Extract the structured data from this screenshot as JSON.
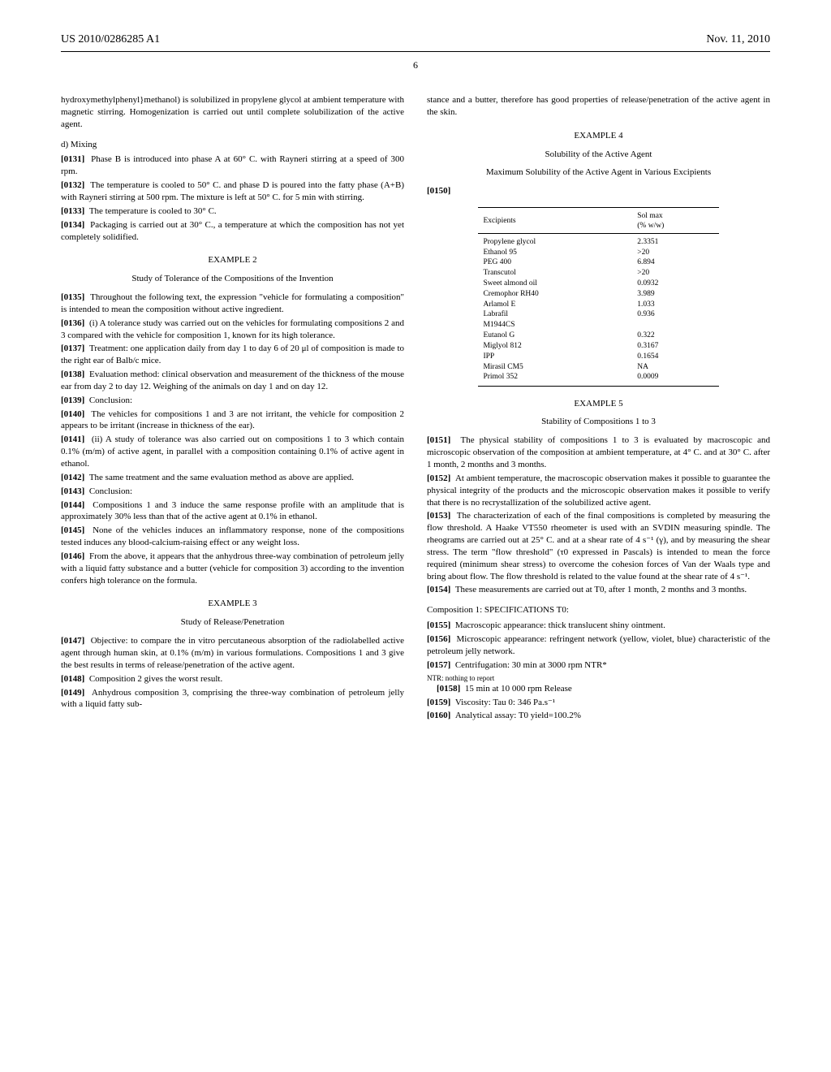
{
  "header": {
    "left": "US 2010/0286285 A1",
    "right": "Nov. 11, 2010"
  },
  "pageNumber": "6",
  "col1": {
    "p_intro": "hydroxymethylphenyl}methanol) is solubilized in propylene glycol at ambient temperature with magnetic stirring. Homogenization is carried out until complete solubilization of the active agent.",
    "d_mixing": "d) Mixing",
    "p0131_label": "[0131]",
    "p0131": "Phase B is introduced into phase A at 60° C. with Rayneri stirring at a speed of 300 rpm.",
    "p0132_label": "[0132]",
    "p0132": "The temperature is cooled to 50° C. and phase D is poured into the fatty phase (A+B) with Rayneri stirring at 500 rpm. The mixture is left at 50° C. for 5 min with stirring.",
    "p0133_label": "[0133]",
    "p0133": "The temperature is cooled to 30° C.",
    "p0134_label": "[0134]",
    "p0134": "Packaging is carried out at 30° C., a temperature at which the composition has not yet completely solidified.",
    "ex2_title": "EXAMPLE 2",
    "ex2_sub": "Study of Tolerance of the Compositions of the Invention",
    "p0135_label": "[0135]",
    "p0135": "Throughout the following text, the expression \"vehicle for formulating a composition\" is intended to mean the composition without active ingredient.",
    "p0136_label": "[0136]",
    "p0136": "(i) A tolerance study was carried out on the vehicles for formulating compositions 2 and 3 compared with the vehicle for composition 1, known for its high tolerance.",
    "p0137_label": "[0137]",
    "p0137": "Treatment: one application daily from day 1 to day 6 of 20 μl of composition is made to the right ear of Balb/c mice.",
    "p0138_label": "[0138]",
    "p0138": "Evaluation method: clinical observation and measurement of the thickness of the mouse ear from day 2 to day 12. Weighing of the animals on day 1 and on day 12.",
    "p0139_label": "[0139]",
    "p0139": "Conclusion:",
    "p0140_label": "[0140]",
    "p0140": "The vehicles for compositions 1 and 3 are not irritant, the vehicle for composition 2 appears to be irritant (increase in thickness of the ear).",
    "p0141_label": "[0141]",
    "p0141": "(ii) A study of tolerance was also carried out on compositions 1 to 3 which contain 0.1% (m/m) of active agent, in parallel with a composition containing 0.1% of active agent in ethanol.",
    "p0142_label": "[0142]",
    "p0142": "The same treatment and the same evaluation method as above are applied.",
    "p0143_label": "[0143]",
    "p0143": "Conclusion:",
    "p0144_label": "[0144]",
    "p0144": "Compositions 1 and 3 induce the same response profile with an amplitude that is approximately 30% less than that of the active agent at 0.1% in ethanol.",
    "p0145_label": "[0145]",
    "p0145": "None of the vehicles induces an inflammatory response, none of the compositions tested induces any blood-calcium-raising effect or any weight loss.",
    "p0146_label": "[0146]",
    "p0146": "From the above, it appears that the anhydrous three-way combination of petroleum jelly with a liquid fatty substance and a butter (vehicle for composition 3) according to the invention confers high tolerance on the formula.",
    "ex3_title": "EXAMPLE 3",
    "ex3_sub": "Study of Release/Penetration",
    "p0147_label": "[0147]",
    "p0147": "Objective: to compare the in vitro percutaneous absorption of the radiolabelled active agent through human skin, at 0.1% (m/m) in various formulations. Compositions 1 and 3 give the best results in terms of release/penetration of the active agent.",
    "p0148_label": "[0148]",
    "p0148": "Composition 2 gives the worst result.",
    "p0149_label": "[0149]",
    "p0149": "Anhydrous composition 3, comprising the three-way combination of petroleum jelly with a liquid fatty sub-"
  },
  "col2": {
    "p_top": "stance and a butter, therefore has good properties of release/penetration of the active agent in the skin.",
    "ex4_title": "EXAMPLE 4",
    "ex4_sub1": "Solubility of the Active Agent",
    "ex4_sub2": "Maximum Solubility of the Active Agent in Various Excipients",
    "p0150_label": "[0150]",
    "table": {
      "h1": "Excipients",
      "h2": "Sol max",
      "h2b": "(% w/w)",
      "rows": [
        {
          "e": "Propylene glycol",
          "v": "2.3351"
        },
        {
          "e": "Ethanol 95",
          "v": ">20"
        },
        {
          "e": "PEG 400",
          "v": "6.894"
        },
        {
          "e": "Transcutol",
          "v": ">20"
        },
        {
          "e": "Sweet almond oil",
          "v": "0.0932"
        },
        {
          "e": "Cremophor RH40",
          "v": "3.989"
        },
        {
          "e": "Arlamol E",
          "v": "1.033"
        },
        {
          "e": "Labrafil",
          "v": "0.936"
        },
        {
          "e": "M1944CS",
          "v": ""
        },
        {
          "e": "Eutanol G",
          "v": "0.322"
        },
        {
          "e": "Miglyol 812",
          "v": "0.3167"
        },
        {
          "e": "IPP",
          "v": "0.1654"
        },
        {
          "e": "Mirasil CM5",
          "v": "NA"
        },
        {
          "e": "Primol 352",
          "v": "0.0009"
        }
      ]
    },
    "ex5_title": "EXAMPLE 5",
    "ex5_sub": "Stability of Compositions 1 to 3",
    "p0151_label": "[0151]",
    "p0151": "The physical stability of compositions 1 to 3 is evaluated by macroscopic and microscopic observation of the composition at ambient temperature, at 4° C. and at 30° C. after 1 month, 2 months and 3 months.",
    "p0152_label": "[0152]",
    "p0152": "At ambient temperature, the macroscopic observation makes it possible to guarantee the physical integrity of the products and the microscopic observation makes it possible to verify that there is no recrystallization of the solubilized active agent.",
    "p0153_label": "[0153]",
    "p0153": "The characterization of each of the final compositions is completed by measuring the flow threshold. A Haake VT550 rheometer is used with an SVDIN measuring spindle. The rheograms are carried out at 25° C. and at a shear rate of 4 s⁻¹ (γ), and by measuring the shear stress. The term \"flow threshold\" (τ0 expressed in Pascals) is intended to mean the force required (minimum shear stress) to overcome the cohesion forces of Van der Waals type and bring about flow. The flow threshold is related to the value found at the shear rate of 4 s⁻¹.",
    "p0154_label": "[0154]",
    "p0154": "These measurements are carried out at T0, after 1 month, 2 months and 3 months.",
    "comp1_title": "Composition 1: SPECIFICATIONS T0:",
    "p0155_label": "[0155]",
    "p0155": "Macroscopic appearance: thick translucent shiny ointment.",
    "p0156_label": "[0156]",
    "p0156": "Microscopic appearance: refringent network (yellow, violet, blue) characteristic of the petroleum jelly network.",
    "p0157_label": "[0157]",
    "p0157": "Centrifugation: 30 min at 3000 rpm NTR*",
    "ntr_note": "NTR: nothing to report",
    "p0158_label": "[0158]",
    "p0158": "15 min at 10 000 rpm Release",
    "p0159_label": "[0159]",
    "p0159": "Viscosity: Tau 0: 346 Pa.s⁻¹",
    "p0160_label": "[0160]",
    "p0160": "Analytical assay: T0 yield=100.2%"
  }
}
